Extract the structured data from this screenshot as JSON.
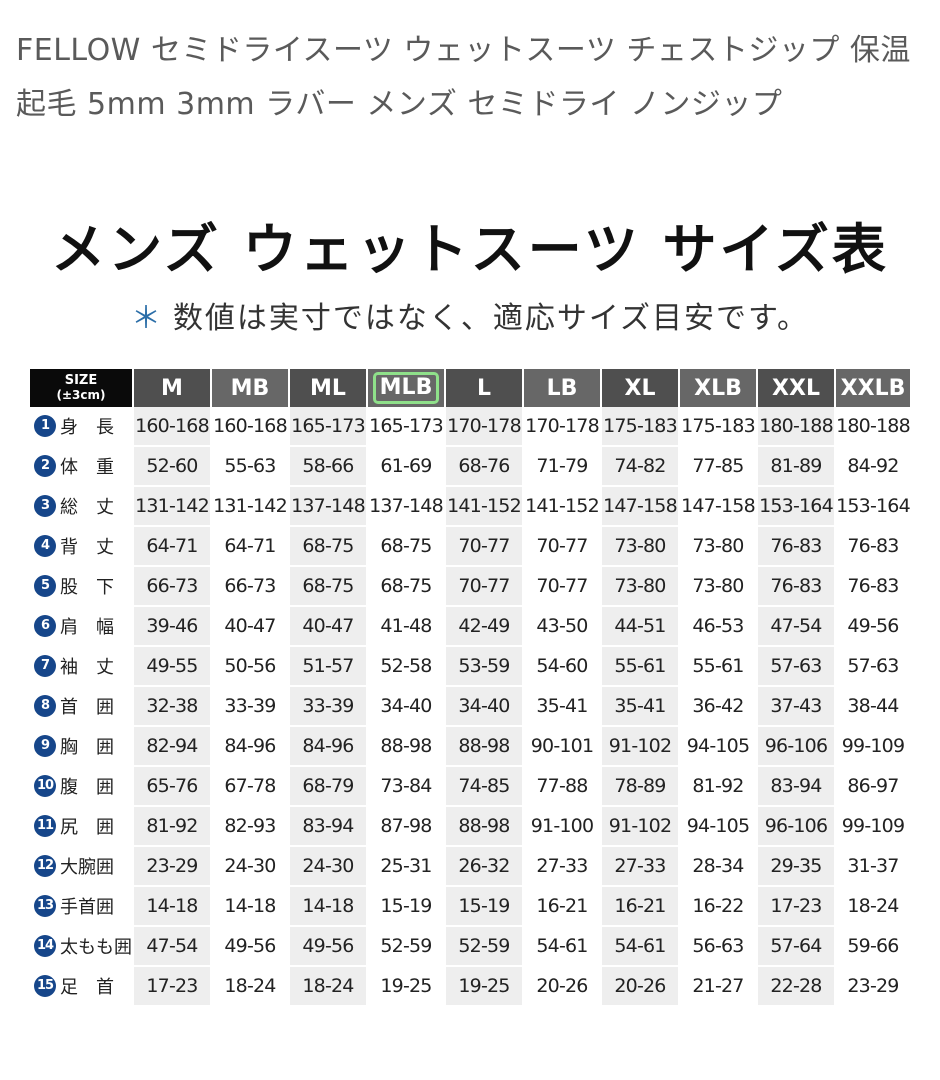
{
  "product_title": "FELLOW セミドライスーツ ウェットスーツ チェストジップ 保温 起毛 5mm 3mm ラバー メンズ セミドライ ノンジップ",
  "chart": {
    "heading": "メンズ ウェットスーツ サイズ表",
    "note_symbol": "＊",
    "note": "数値は実寸ではなく、適応サイズ目安です。",
    "size_header": "SIZE",
    "size_tolerance": "(±3cm)",
    "highlight_color": "#8fe08a",
    "sizes": [
      "M",
      "MB",
      "ML",
      "MLB",
      "L",
      "LB",
      "XL",
      "XLB",
      "XXL",
      "XXLB"
    ],
    "highlighted_size": "MLB",
    "rows": [
      {
        "num": "1",
        "label": "身　長",
        "values": [
          "160-168",
          "160-168",
          "165-173",
          "165-173",
          "170-178",
          "170-178",
          "175-183",
          "175-183",
          "180-188",
          "180-188"
        ]
      },
      {
        "num": "2",
        "label": "体　重",
        "values": [
          "52-60",
          "55-63",
          "58-66",
          "61-69",
          "68-76",
          "71-79",
          "74-82",
          "77-85",
          "81-89",
          "84-92"
        ]
      },
      {
        "num": "3",
        "label": "総　丈",
        "values": [
          "131-142",
          "131-142",
          "137-148",
          "137-148",
          "141-152",
          "141-152",
          "147-158",
          "147-158",
          "153-164",
          "153-164"
        ]
      },
      {
        "num": "4",
        "label": "背　丈",
        "values": [
          "64-71",
          "64-71",
          "68-75",
          "68-75",
          "70-77",
          "70-77",
          "73-80",
          "73-80",
          "76-83",
          "76-83"
        ]
      },
      {
        "num": "5",
        "label": "股　下",
        "values": [
          "66-73",
          "66-73",
          "68-75",
          "68-75",
          "70-77",
          "70-77",
          "73-80",
          "73-80",
          "76-83",
          "76-83"
        ]
      },
      {
        "num": "6",
        "label": "肩　幅",
        "values": [
          "39-46",
          "40-47",
          "40-47",
          "41-48",
          "42-49",
          "43-50",
          "44-51",
          "46-53",
          "47-54",
          "49-56"
        ]
      },
      {
        "num": "7",
        "label": "袖　丈",
        "values": [
          "49-55",
          "50-56",
          "51-57",
          "52-58",
          "53-59",
          "54-60",
          "55-61",
          "55-61",
          "57-63",
          "57-63"
        ]
      },
      {
        "num": "8",
        "label": "首　囲",
        "values": [
          "32-38",
          "33-39",
          "33-39",
          "34-40",
          "34-40",
          "35-41",
          "35-41",
          "36-42",
          "37-43",
          "38-44"
        ]
      },
      {
        "num": "9",
        "label": "胸　囲",
        "values": [
          "82-94",
          "84-96",
          "84-96",
          "88-98",
          "88-98",
          "90-101",
          "91-102",
          "94-105",
          "96-106",
          "99-109"
        ]
      },
      {
        "num": "10",
        "label": "腹　囲",
        "values": [
          "65-76",
          "67-78",
          "68-79",
          "73-84",
          "74-85",
          "77-88",
          "78-89",
          "81-92",
          "83-94",
          "86-97"
        ]
      },
      {
        "num": "11",
        "label": "尻　囲",
        "values": [
          "81-92",
          "82-93",
          "83-94",
          "87-98",
          "88-98",
          "91-100",
          "91-102",
          "94-105",
          "96-106",
          "99-109"
        ]
      },
      {
        "num": "12",
        "label": "大腕囲",
        "values": [
          "23-29",
          "24-30",
          "24-30",
          "25-31",
          "26-32",
          "27-33",
          "27-33",
          "28-34",
          "29-35",
          "31-37"
        ]
      },
      {
        "num": "13",
        "label": "手首囲",
        "values": [
          "14-18",
          "14-18",
          "14-18",
          "15-19",
          "15-19",
          "16-21",
          "16-21",
          "16-22",
          "17-23",
          "18-24"
        ]
      },
      {
        "num": "14",
        "label": "太もも囲",
        "values": [
          "47-54",
          "49-56",
          "49-56",
          "52-59",
          "52-59",
          "54-61",
          "54-61",
          "56-63",
          "57-64",
          "59-66"
        ]
      },
      {
        "num": "15",
        "label": "足　首",
        "values": [
          "17-23",
          "18-24",
          "18-24",
          "19-25",
          "19-25",
          "20-26",
          "20-26",
          "21-27",
          "22-28",
          "23-29"
        ]
      }
    ]
  }
}
